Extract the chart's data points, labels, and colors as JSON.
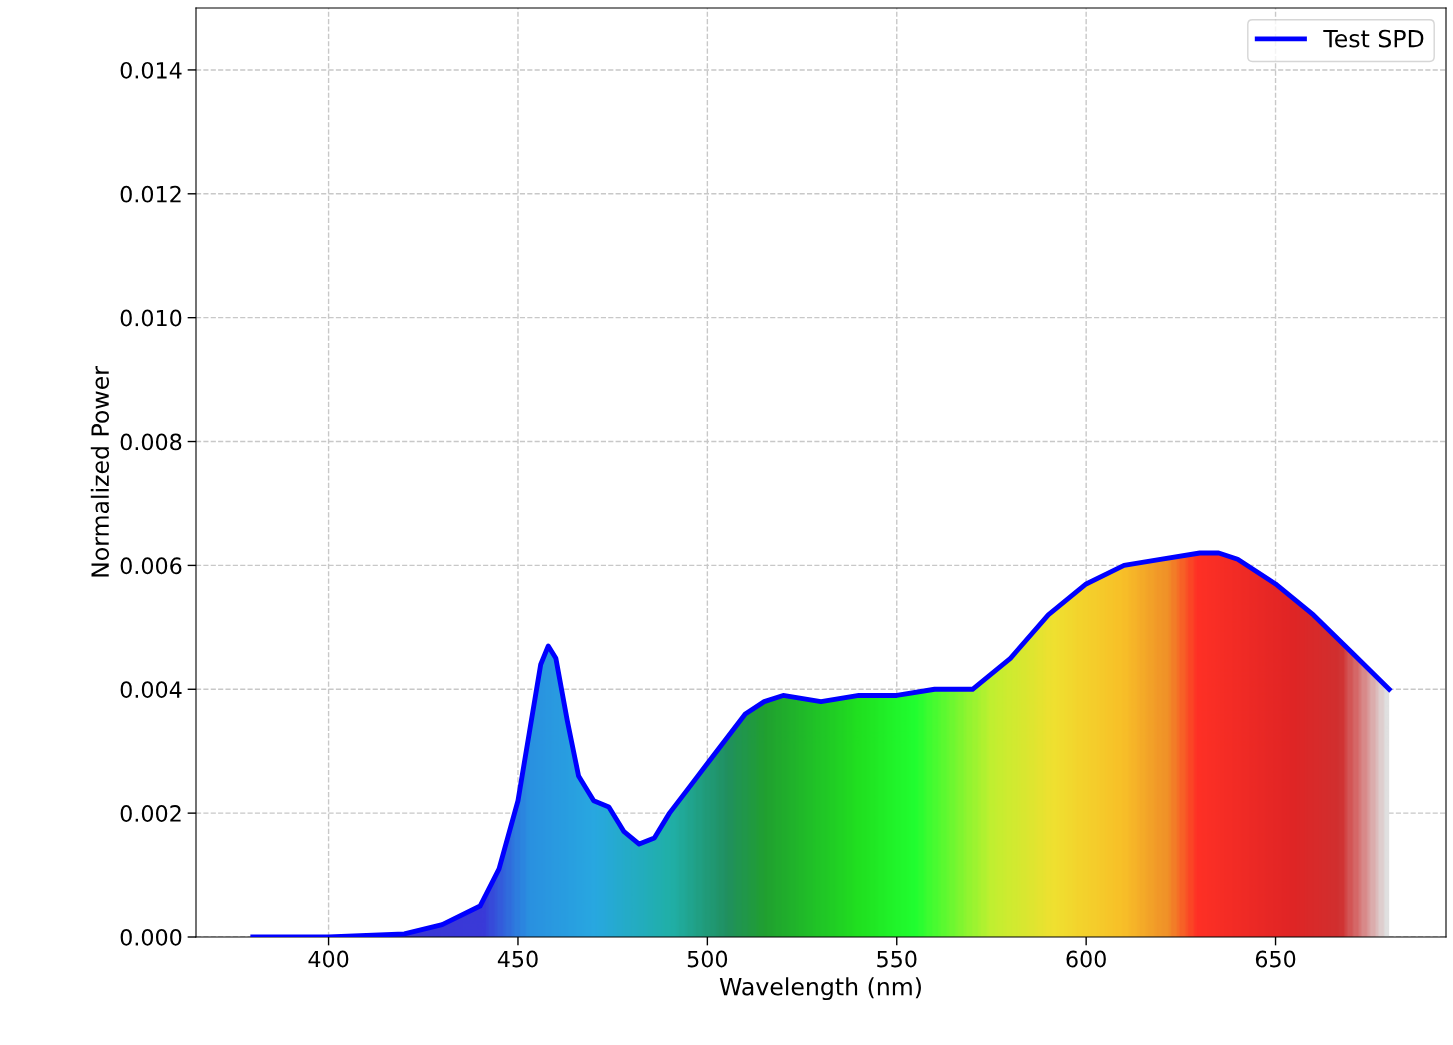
{
  "chart_data": {
    "type": "line",
    "xlabel": "Wavelength (nm)",
    "ylabel": "Normalized Power",
    "xlim": [
      365,
      695
    ],
    "xticks": [
      400,
      450,
      500,
      550,
      600,
      650
    ],
    "ylim": [
      0,
      0.015
    ],
    "yticks": [
      {
        "value": 0,
        "label": "0.000"
      },
      {
        "value": 0.002,
        "label": "0.002"
      },
      {
        "value": 0.004,
        "label": "0.004"
      },
      {
        "value": 0.006,
        "label": "0.006"
      },
      {
        "value": 0.008,
        "label": "0.008"
      },
      {
        "value": 0.01,
        "label": "0.010"
      },
      {
        "value": 0.012,
        "label": "0.012"
      },
      {
        "value": 0.014,
        "label": "0.014"
      }
    ],
    "grid": true,
    "legend": "top right",
    "line_style": "solid",
    "marker": "none",
    "x": [
      380,
      400,
      420,
      430,
      440,
      445,
      450,
      453,
      456,
      458,
      460,
      463,
      466,
      470,
      474,
      478,
      482,
      486,
      490,
      495,
      500,
      505,
      510,
      515,
      520,
      530,
      540,
      550,
      560,
      570,
      580,
      590,
      600,
      610,
      620,
      630,
      635,
      640,
      650,
      660,
      670,
      680
    ],
    "series": [
      {
        "name": "Test SPD",
        "color": "#0000ff",
        "values": [
          0,
          0,
          5e-05,
          0.0002,
          0.0005,
          0.0011,
          0.0022,
          0.0033,
          0.0044,
          0.0047,
          0.0045,
          0.0035,
          0.0026,
          0.0022,
          0.0021,
          0.0017,
          0.0015,
          0.0016,
          0.002,
          0.0024,
          0.0028,
          0.0032,
          0.0036,
          0.0038,
          0.0039,
          0.0038,
          0.0039,
          0.0039,
          0.004,
          0.004,
          0.0045,
          0.0052,
          0.0057,
          0.006,
          0.0061,
          0.0062,
          0.0062,
          0.0061,
          0.0057,
          0.0052,
          0.0046,
          0.004
        ]
      }
    ]
  }
}
